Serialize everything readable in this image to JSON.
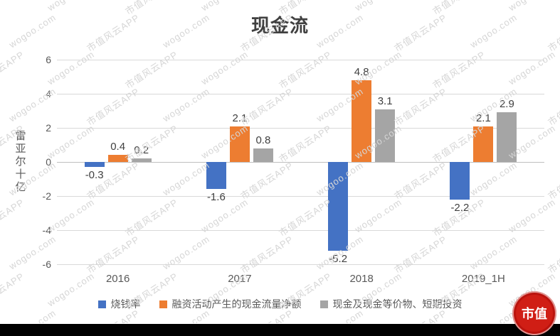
{
  "watermarks": {
    "texts": [
      "市值风云APP",
      "wogoo.com"
    ]
  },
  "chart_data": {
    "type": "bar",
    "title": "现金流",
    "ylabel": "雷亚尔十亿",
    "xlabel": "",
    "categories": [
      "2016",
      "2017",
      "2018",
      "2019_1H"
    ],
    "series": [
      {
        "name": "烧钱率",
        "color": "#4472C4",
        "values": [
          -0.3,
          -1.6,
          -5.2,
          -2.2
        ]
      },
      {
        "name": "融资活动产生的现金流量净额",
        "color": "#ED7D31",
        "values": [
          0.4,
          2.1,
          4.8,
          2.1
        ]
      },
      {
        "name": "现金及现金等价物、短期投资",
        "color": "#A5A5A5",
        "values": [
          0.2,
          0.8,
          3.1,
          2.9
        ]
      }
    ],
    "ylim": [
      -6,
      6
    ],
    "ytick_step": 2,
    "grid": true,
    "legend_position": "bottom",
    "gridline_color": "#d9d9d9",
    "zero_line_color": "#bfbfbf",
    "bar_label_color": "#404040",
    "axis_text_color": "#595959"
  },
  "footer": {
    "bar_color": "#000000"
  },
  "logo": {
    "text": "市值",
    "color": "#d01e15"
  }
}
